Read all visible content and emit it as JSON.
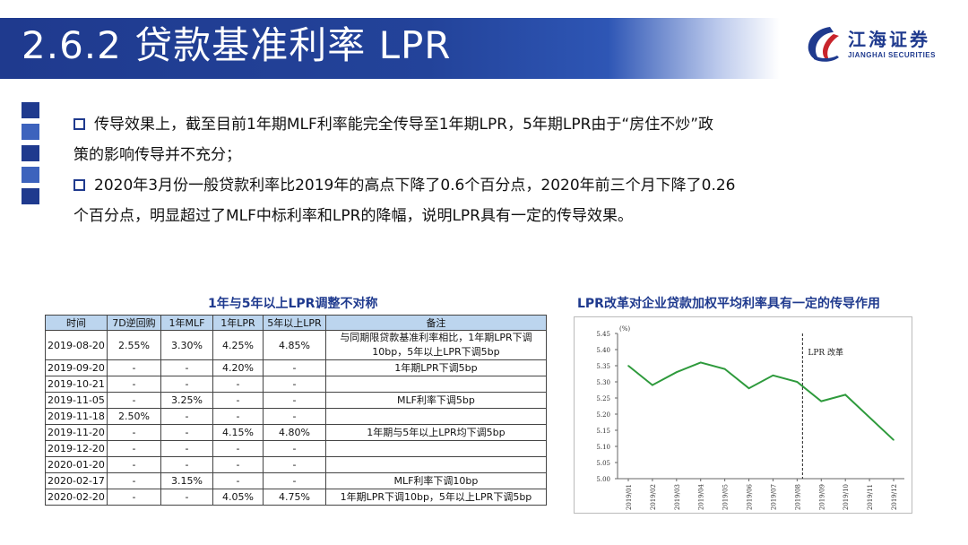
{
  "header": {
    "title": "2.6.2 贷款基准利率 LPR",
    "logo_cn": "江海证券",
    "logo_en": "JIANGHAI SECURITIES"
  },
  "bullets": [
    {
      "lines": [
        "传导效果上，截至目前1年期MLF利率能完全传导至1年期LPR，5年期LPR由于“房住不炒”政",
        "策的影响传导并不充分；"
      ]
    },
    {
      "lines": [
        "2020年3月份一般贷款利率比2019年的高点下降了0.6个百分点，2020年前三个月下降了0.26",
        "个百分点，明显超过了MLF中标利率和LPR的降幅，说明LPR具有一定的传导效果。"
      ]
    }
  ],
  "table": {
    "title": "1年与5年以上LPR调整不对称",
    "headers": [
      "时间",
      "7D逆回购",
      "1年MLF",
      "1年LPR",
      "5年以上LPR",
      "备注"
    ],
    "rows": [
      [
        "2019-08-20",
        "2.55%",
        "3.30%",
        "4.25%",
        "4.85%",
        "与同期限贷款基准利率相比，1年期LPR下调10bp，5年以上LPR下调5bp"
      ],
      [
        "2019-09-20",
        "-",
        "-",
        "4.20%",
        "-",
        "1年期LPR下调5bp"
      ],
      [
        "2019-10-21",
        "-",
        "-",
        "-",
        "-",
        ""
      ],
      [
        "2019-11-05",
        "-",
        "3.25%",
        "-",
        "-",
        "MLF利率下调5bp"
      ],
      [
        "2019-11-18",
        "2.50%",
        "-",
        "-",
        "-",
        ""
      ],
      [
        "2019-11-20",
        "-",
        "-",
        "4.15%",
        "4.80%",
        "1年期与5年以上LPR均下调5bp"
      ],
      [
        "2019-12-20",
        "-",
        "-",
        "-",
        "-",
        ""
      ],
      [
        "2020-01-20",
        "-",
        "-",
        "-",
        "-",
        ""
      ],
      [
        "2020-02-17",
        "-",
        "3.15%",
        "-",
        "-",
        "MLF利率下调10bp"
      ],
      [
        "2020-02-20",
        "-",
        "-",
        "4.05%",
        "4.75%",
        "1年期LPR下调10bp，5年以上LPR下调5bp"
      ]
    ]
  },
  "chart_data": {
    "type": "line",
    "title": "LPR改革对企业贷款加权平均利率具有一定的传导作用",
    "ylabel": "(%)",
    "x": [
      "2019/01",
      "2019/02",
      "2019/03",
      "2019/04",
      "2019/05",
      "2019/06",
      "2019/07",
      "2019/08",
      "2019/09",
      "2019/10",
      "2019/11",
      "2019/12"
    ],
    "series": [
      {
        "values": [
          5.35,
          5.29,
          5.33,
          5.36,
          5.34,
          5.28,
          5.32,
          5.3,
          5.24,
          5.26,
          null,
          5.12
        ]
      }
    ],
    "ylim": [
      5.0,
      5.45
    ],
    "yticks": [
      "5.00",
      "5.05",
      "5.10",
      "5.15",
      "5.20",
      "5.25",
      "5.30",
      "5.35",
      "5.40",
      "5.45"
    ],
    "annotation": {
      "text": "LPR 改革",
      "x": "2019/08"
    },
    "grid": false,
    "color": "#2e9a3c"
  }
}
